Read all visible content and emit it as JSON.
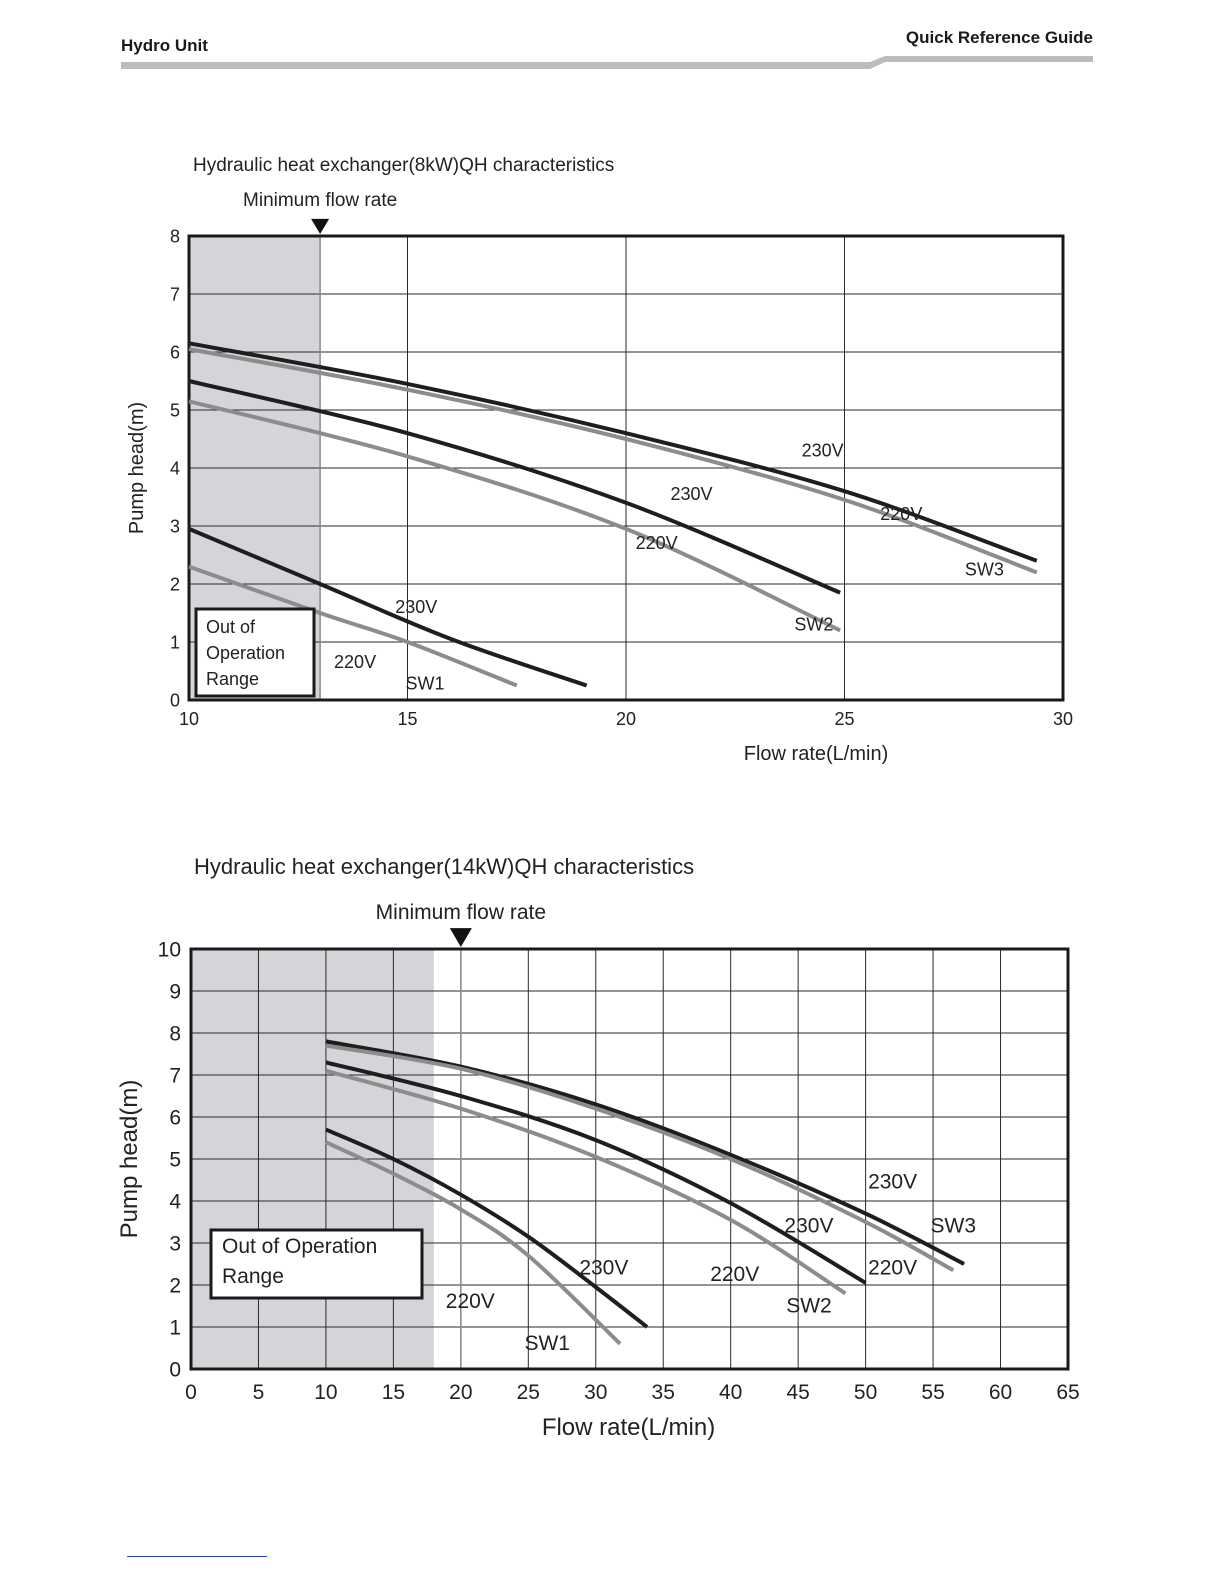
{
  "header": {
    "left_title": "Hydro Unit",
    "right_title": "Quick Reference Guide"
  },
  "colors": {
    "v230": "#1e1e1e",
    "v220": "#8c8c8c",
    "out_of_range_fill": "#d4d5d8"
  },
  "chart_data": [
    {
      "type": "line",
      "title": "Hydraulic heat exchanger(8kW)QH characteristics",
      "xlabel": "Flow rate(L/min)",
      "ylabel": "Pump head(m)",
      "xlim": [
        10,
        30
      ],
      "ylim": [
        0,
        8
      ],
      "xticks": [
        10,
        15,
        20,
        25,
        30
      ],
      "yticks": [
        0,
        1,
        2,
        3,
        4,
        5,
        6,
        7,
        8
      ],
      "grid": true,
      "minimum_flow_rate": {
        "label": "Minimum flow rate",
        "x": 13
      },
      "out_of_range": {
        "label": [
          "Out of",
          "Operation",
          "Range"
        ],
        "x_range": [
          10,
          13
        ]
      },
      "series": [
        {
          "name": "230V",
          "group": "SW3",
          "voltage": "230V",
          "x": [
            10,
            15,
            20,
            25,
            29.4
          ],
          "y": [
            6.15,
            5.45,
            4.6,
            3.6,
            2.4
          ]
        },
        {
          "name": "220V",
          "group": "SW3",
          "voltage": "220V",
          "x": [
            10,
            15,
            20,
            25,
            29.4
          ],
          "y": [
            6.05,
            5.35,
            4.5,
            3.45,
            2.2
          ]
        },
        {
          "name": "230V",
          "group": "SW2",
          "voltage": "230V",
          "x": [
            10,
            15,
            20,
            24.9
          ],
          "y": [
            5.5,
            4.6,
            3.4,
            1.85
          ]
        },
        {
          "name": "220V",
          "group": "SW2",
          "voltage": "220V",
          "x": [
            10,
            15,
            20,
            24.9
          ],
          "y": [
            5.15,
            4.2,
            2.95,
            1.2
          ]
        },
        {
          "name": "230V",
          "group": "SW1",
          "voltage": "230V",
          "x": [
            10,
            13,
            16,
            19.1
          ],
          "y": [
            2.95,
            2.0,
            1.05,
            0.25
          ]
        },
        {
          "name": "220V",
          "group": "SW1",
          "voltage": "220V",
          "x": [
            10,
            13,
            15,
            17.5
          ],
          "y": [
            2.3,
            1.5,
            1.0,
            0.25
          ]
        }
      ],
      "annotations": [
        {
          "text": "230V",
          "x": 24.5,
          "y": 4.2
        },
        {
          "text": "220V",
          "x": 26.3,
          "y": 3.1
        },
        {
          "text": "SW3",
          "x": 28.2,
          "y": 2.15
        },
        {
          "text": "230V",
          "x": 21.5,
          "y": 3.45
        },
        {
          "text": "220V",
          "x": 20.7,
          "y": 2.6
        },
        {
          "text": "SW2",
          "x": 24.3,
          "y": 1.2
        },
        {
          "text": "230V",
          "x": 15.2,
          "y": 1.5
        },
        {
          "text": "220V",
          "x": 13.8,
          "y": 0.55
        },
        {
          "text": "SW1",
          "x": 15.4,
          "y": 0.18
        }
      ]
    },
    {
      "type": "line",
      "title": "Hydraulic heat exchanger(14kW)QH characteristics",
      "xlabel": "Flow rate(L/min)",
      "ylabel": "Pump head(m)",
      "xlim": [
        0,
        65
      ],
      "ylim": [
        0,
        10
      ],
      "xticks": [
        0,
        5,
        10,
        15,
        20,
        25,
        30,
        35,
        40,
        45,
        50,
        55,
        60,
        65
      ],
      "yticks": [
        0,
        1,
        2,
        3,
        4,
        5,
        6,
        7,
        8,
        9,
        10
      ],
      "grid": true,
      "minimum_flow_rate": {
        "label": "Minimum flow rate",
        "x": 20
      },
      "out_of_range": {
        "label": [
          "Out of Operation",
          "Range"
        ],
        "x_range": [
          0,
          18
        ]
      },
      "series": [
        {
          "name": "230V",
          "group": "SW3",
          "voltage": "230V",
          "x": [
            10,
            20,
            30,
            40,
            50,
            57.3
          ],
          "y": [
            7.8,
            7.2,
            6.3,
            5.1,
            3.7,
            2.5
          ]
        },
        {
          "name": "220V",
          "group": "SW3",
          "voltage": "220V",
          "x": [
            10,
            20,
            30,
            40,
            50,
            56.5
          ],
          "y": [
            7.7,
            7.15,
            6.2,
            5.0,
            3.5,
            2.35
          ]
        },
        {
          "name": "230V",
          "group": "SW2",
          "voltage": "230V",
          "x": [
            10,
            20,
            30,
            40,
            50
          ],
          "y": [
            7.3,
            6.5,
            5.45,
            3.95,
            2.05
          ]
        },
        {
          "name": "220V",
          "group": "SW2",
          "voltage": "220V",
          "x": [
            10,
            20,
            30,
            40,
            48.5
          ],
          "y": [
            7.1,
            6.2,
            5.05,
            3.55,
            1.8
          ]
        },
        {
          "name": "230V",
          "group": "SW1",
          "voltage": "230V",
          "x": [
            10,
            15,
            20,
            25,
            30,
            33.8
          ],
          "y": [
            5.7,
            5.0,
            4.15,
            3.15,
            1.95,
            1.0
          ]
        },
        {
          "name": "220V",
          "group": "SW1",
          "voltage": "220V",
          "x": [
            10,
            15,
            20,
            25,
            31.8
          ],
          "y": [
            5.4,
            4.65,
            3.8,
            2.7,
            0.6
          ]
        }
      ],
      "annotations": [
        {
          "text": "230V",
          "x": 52,
          "y": 4.3
        },
        {
          "text": "SW3",
          "x": 56.5,
          "y": 3.25
        },
        {
          "text": "230V",
          "x": 45.8,
          "y": 3.25
        },
        {
          "text": "220V",
          "x": 52,
          "y": 2.25
        },
        {
          "text": "220V",
          "x": 40.3,
          "y": 2.1
        },
        {
          "text": "SW2",
          "x": 45.8,
          "y": 1.35
        },
        {
          "text": "230V",
          "x": 30.6,
          "y": 2.25
        },
        {
          "text": "220V",
          "x": 20.7,
          "y": 1.45
        },
        {
          "text": "SW1",
          "x": 26.4,
          "y": 0.45
        }
      ]
    }
  ]
}
